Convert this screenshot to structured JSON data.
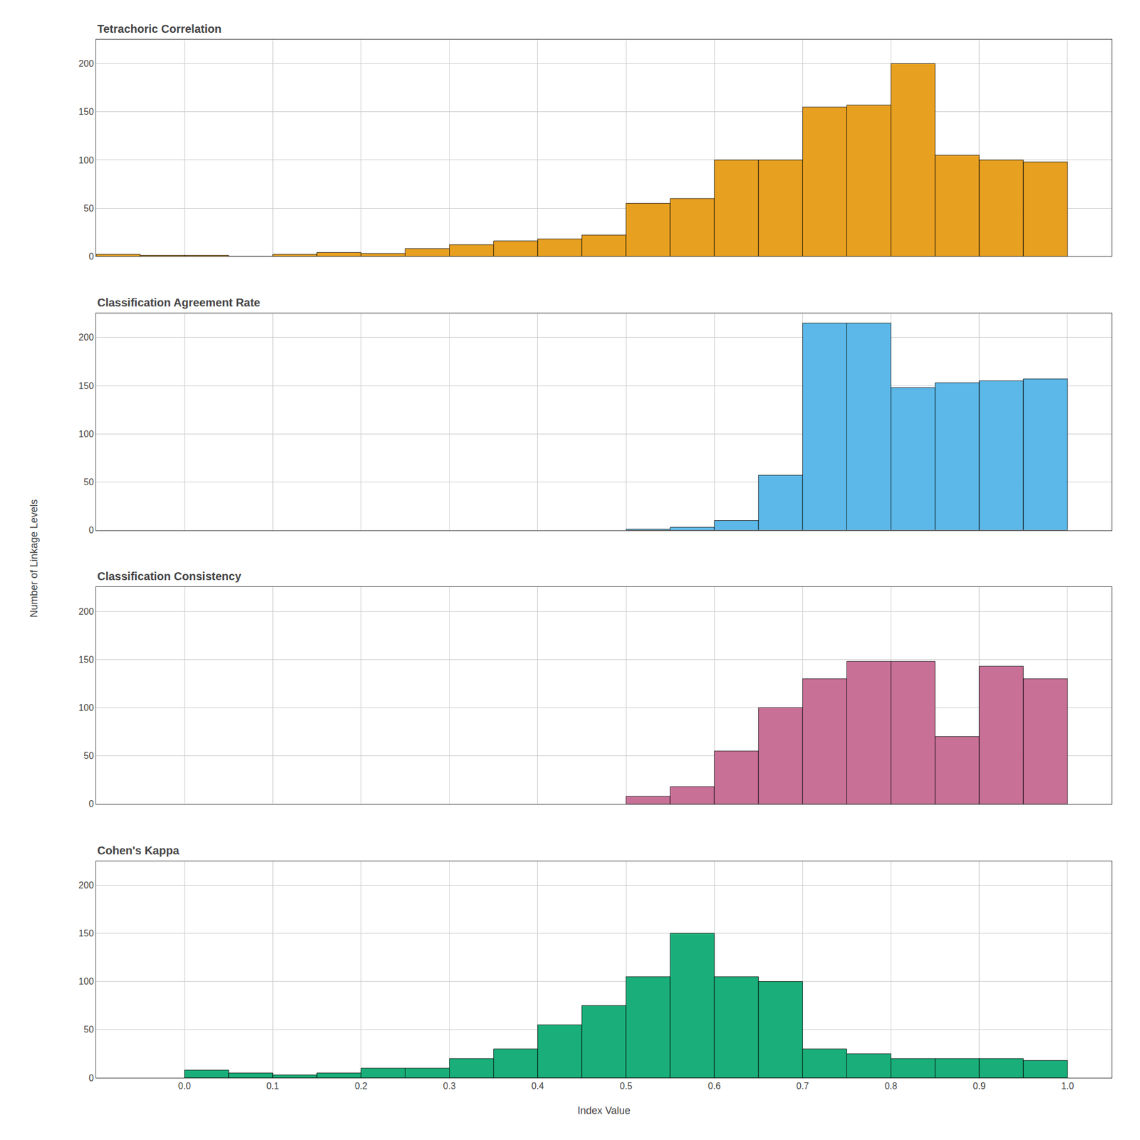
{
  "chart_data": [
    {
      "type": "histogram",
      "title": "Tetrachoric Correlation",
      "ylabel": "Number of Linkage Levels",
      "color": "#E8A020",
      "bins": [
        -0.1,
        -0.05,
        0.0,
        0.05,
        0.1,
        0.15,
        0.2,
        0.25,
        0.3,
        0.35,
        0.4,
        0.45,
        0.5,
        0.55,
        0.6,
        0.65,
        0.7,
        0.75,
        0.8,
        0.85,
        0.9,
        0.95,
        1.0
      ],
      "values": [
        2,
        1,
        1,
        0,
        2,
        4,
        3,
        8,
        12,
        16,
        18,
        22,
        55,
        60,
        100,
        100,
        155,
        157,
        200,
        105,
        100,
        98
      ],
      "xlim": [
        -0.1,
        1.05
      ],
      "xticks": [
        {
          "value": 0.0,
          "label": "0.0"
        },
        0.1,
        0.2,
        0.3,
        0.4,
        0.5,
        0.6,
        0.7,
        0.8,
        0.9,
        {
          "value": 1.0,
          "label": "1.0"
        }
      ],
      "ylim": [
        0,
        225
      ],
      "yticks": [
        0,
        50,
        100,
        150,
        200
      ],
      "grid": true,
      "tick_labels": "y"
    },
    {
      "type": "histogram",
      "title": "Classification Agreement Rate",
      "color": "#5BB8E8",
      "bins": [
        0.5,
        0.55,
        0.6,
        0.65,
        0.7,
        0.75,
        0.8,
        0.85,
        0.9,
        0.95,
        1.0
      ],
      "values": [
        1,
        3,
        10,
        57,
        215,
        215,
        148,
        153,
        155,
        157
      ],
      "xlim": [
        -0.1,
        1.05
      ],
      "xticks": [
        {
          "value": 0.0,
          "label": "0.0"
        },
        0.1,
        0.2,
        0.3,
        0.4,
        0.5,
        0.6,
        0.7,
        0.8,
        0.9,
        {
          "value": 1.0,
          "label": "1.0"
        }
      ],
      "ylim": [
        0,
        225
      ],
      "yticks": [
        0,
        50,
        100,
        150,
        200
      ],
      "grid": true,
      "tick_labels": "y"
    },
    {
      "type": "histogram",
      "title": "Classification Consistency",
      "color": "#C97097",
      "bins": [
        0.5,
        0.55,
        0.6,
        0.65,
        0.7,
        0.75,
        0.8,
        0.85,
        0.9,
        0.95,
        1.0
      ],
      "values": [
        8,
        18,
        55,
        100,
        130,
        148,
        148,
        70,
        143,
        130
      ],
      "xlim": [
        -0.1,
        1.05
      ],
      "xticks": [
        {
          "value": 0.0,
          "label": "0.0"
        },
        0.1,
        0.2,
        0.3,
        0.4,
        0.5,
        0.6,
        0.7,
        0.8,
        0.9,
        {
          "value": 1.0,
          "label": "1.0"
        }
      ],
      "ylim": [
        0,
        225
      ],
      "yticks": [
        0,
        50,
        100,
        150,
        200
      ],
      "grid": true,
      "tick_labels": "y"
    },
    {
      "type": "histogram",
      "title": "Cohen's Kappa",
      "xlabel": "Index Value",
      "color": "#1AAF7A",
      "bins": [
        0.0,
        0.05,
        0.1,
        0.15,
        0.2,
        0.25,
        0.3,
        0.35,
        0.4,
        0.45,
        0.5,
        0.55,
        0.6,
        0.65,
        0.7,
        0.75,
        0.8,
        0.85,
        0.9,
        0.95,
        1.0
      ],
      "values": [
        8,
        5,
        3,
        5,
        10,
        10,
        20,
        30,
        55,
        75,
        105,
        150,
        105,
        100,
        30,
        25,
        20,
        20,
        20,
        18
      ],
      "xlim": [
        -0.1,
        1.05
      ],
      "xticks": [
        {
          "value": 0.0,
          "label": "0.0"
        },
        0.1,
        0.2,
        0.3,
        0.4,
        0.5,
        0.6,
        0.7,
        0.8,
        0.9,
        {
          "value": 1.0,
          "label": "1.0"
        }
      ],
      "ylim": [
        0,
        225
      ],
      "yticks": [
        0,
        50,
        100,
        150,
        200
      ],
      "grid": true
    }
  ]
}
